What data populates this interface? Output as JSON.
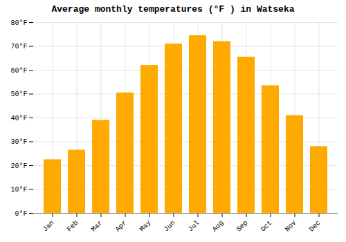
{
  "chart_data": {
    "type": "bar",
    "title": "Average monthly temperatures (°F ) in Watseka",
    "categories": [
      "Jan",
      "Feb",
      "Mar",
      "Apr",
      "May",
      "Jun",
      "Jul",
      "Aug",
      "Sep",
      "Oct",
      "Nov",
      "Dec"
    ],
    "values": [
      22.5,
      26.5,
      39.0,
      50.5,
      62.0,
      71.0,
      74.5,
      72.0,
      65.5,
      53.5,
      41.0,
      28.0
    ],
    "color": "#FFAA00",
    "ylim": [
      0,
      80
    ],
    "yticks": [
      {
        "value": 0,
        "label": "0°F"
      },
      {
        "value": 10,
        "label": "10°F"
      },
      {
        "value": 20,
        "label": "20°F"
      },
      {
        "value": 30,
        "label": "30°F"
      },
      {
        "value": 40,
        "label": "40°F"
      },
      {
        "value": 50,
        "label": "50°F"
      },
      {
        "value": 60,
        "label": "60°F"
      },
      {
        "value": 70,
        "label": "70°F"
      },
      {
        "value": 80,
        "label": "80°F"
      }
    ],
    "grid": true
  }
}
